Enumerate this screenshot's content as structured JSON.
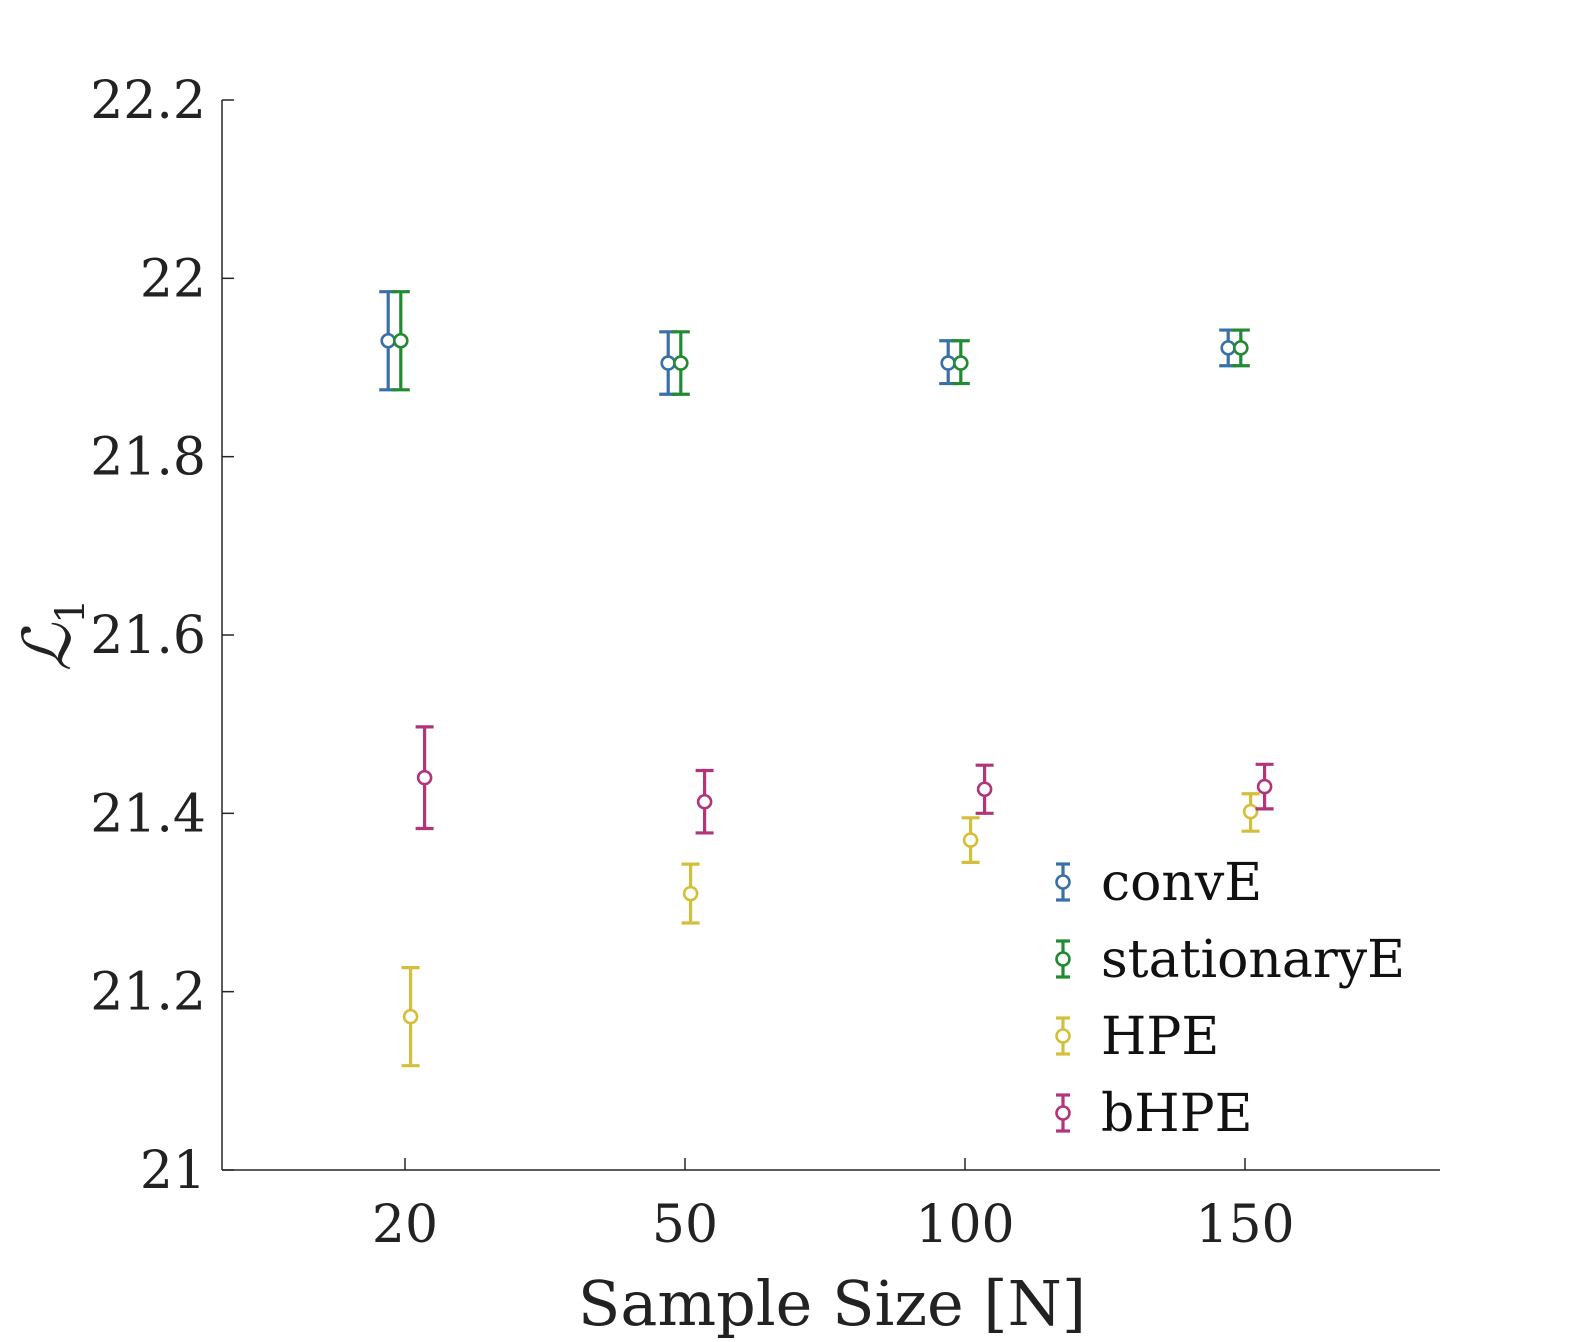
{
  "chart_data": {
    "type": "scatter",
    "title": "",
    "xlabel": "Sample Size [N]",
    "ylabel": "ℒ₁",
    "ylabel_main": "ℒ",
    "ylabel_sub": "1",
    "categories": [
      "20",
      "50",
      "100",
      "150"
    ],
    "ylim": [
      21,
      22.2
    ],
    "yticks": [
      "21",
      "21.2",
      "21.4",
      "21.6",
      "21.8",
      "22",
      "22.2"
    ],
    "legend_position": "lower-right",
    "grid": false,
    "series": [
      {
        "name": "convE",
        "color": "#3a6fa8",
        "offset": -0.06,
        "values": [
          21.93,
          21.905,
          21.905,
          21.922
        ],
        "lower": [
          21.875,
          21.87,
          21.882,
          21.902
        ],
        "upper": [
          21.985,
          21.94,
          21.93,
          21.942
        ]
      },
      {
        "name": "stationaryE",
        "color": "#218a32",
        "offset": -0.015,
        "values": [
          21.93,
          21.905,
          21.905,
          21.922
        ],
        "lower": [
          21.875,
          21.87,
          21.882,
          21.902
        ],
        "upper": [
          21.985,
          21.94,
          21.93,
          21.942
        ]
      },
      {
        "name": "HPE",
        "color": "#d4bf3c",
        "offset": 0.02,
        "values": [
          21.172,
          21.31,
          21.37,
          21.402
        ],
        "lower": [
          21.117,
          21.277,
          21.345,
          21.38
        ],
        "upper": [
          21.227,
          21.343,
          21.395,
          21.422
        ]
      },
      {
        "name": "bHPE",
        "color": "#b03579",
        "offset": 0.07,
        "values": [
          21.44,
          21.413,
          21.427,
          21.43
        ],
        "lower": [
          21.383,
          21.378,
          21.4,
          21.405
        ],
        "upper": [
          21.497,
          21.448,
          21.454,
          21.455
        ]
      }
    ]
  }
}
